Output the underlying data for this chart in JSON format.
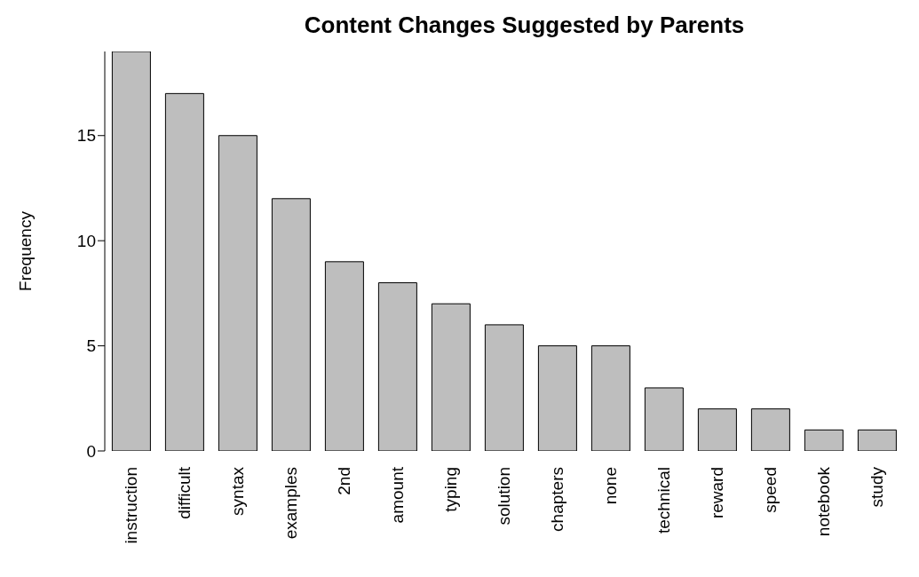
{
  "chart_data": {
    "type": "bar",
    "title": "Content Changes Suggested by Parents",
    "ylabel": "Frequency",
    "categories": [
      "instruction",
      "difficult",
      "syntax",
      "examples",
      "2nd",
      "amount",
      "typing",
      "solution",
      "chapters",
      "none",
      "technical",
      "reward",
      "speed",
      "notebook",
      "study"
    ],
    "values": [
      19,
      17,
      15,
      12,
      9,
      8,
      7,
      6,
      5,
      5,
      3,
      2,
      2,
      1,
      1
    ],
    "color": "#bebebe",
    "ylim": [
      0,
      19
    ],
    "yticks": [
      0,
      5,
      10,
      15
    ],
    "grid": false,
    "legend": false
  }
}
